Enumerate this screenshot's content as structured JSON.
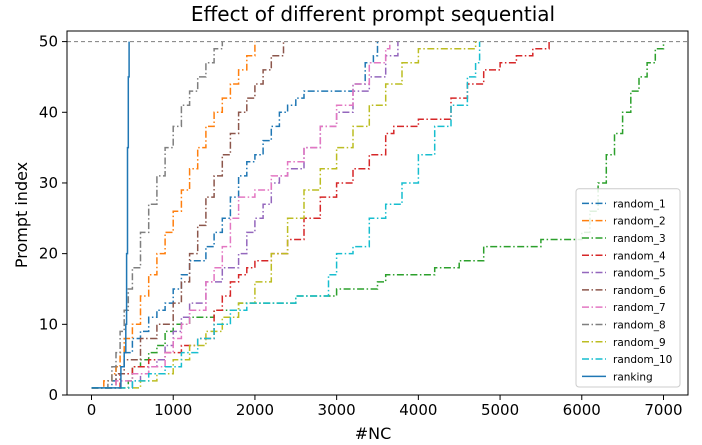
{
  "chart_data": {
    "type": "line",
    "title": "Effect of different prompt sequential",
    "xlabel": "#NC",
    "ylabel": "Prompt index",
    "xlim": [
      -300,
      7300
    ],
    "ylim": [
      0,
      51.5
    ],
    "xticks": [
      0,
      1000,
      2000,
      3000,
      4000,
      5000,
      6000,
      7000
    ],
    "yticks": [
      0,
      10,
      20,
      30,
      40,
      50
    ],
    "reference_line": {
      "y": 50,
      "style": "dashed",
      "color": "#7f7f7f"
    },
    "legend_position": "lower-right",
    "series": [
      {
        "name": "random_1",
        "color": "#1f77b4",
        "style": "dashdot",
        "points": [
          [
            0,
            1
          ],
          [
            200,
            1
          ],
          [
            250,
            2
          ],
          [
            300,
            4
          ],
          [
            400,
            6
          ],
          [
            500,
            8
          ],
          [
            600,
            9
          ],
          [
            700,
            11
          ],
          [
            800,
            12
          ],
          [
            900,
            13
          ],
          [
            1000,
            15
          ],
          [
            1100,
            17
          ],
          [
            1200,
            19
          ],
          [
            1400,
            21
          ],
          [
            1500,
            23
          ],
          [
            1600,
            25
          ],
          [
            1700,
            28
          ],
          [
            1800,
            31
          ],
          [
            1900,
            33
          ],
          [
            2000,
            34
          ],
          [
            2100,
            36
          ],
          [
            2200,
            38
          ],
          [
            2300,
            40
          ],
          [
            2400,
            41
          ],
          [
            2500,
            42
          ],
          [
            2600,
            43
          ],
          [
            2800,
            43
          ],
          [
            3000,
            43
          ],
          [
            3200,
            44
          ],
          [
            3350,
            47
          ],
          [
            3450,
            48
          ],
          [
            3500,
            50
          ]
        ]
      },
      {
        "name": "random_2",
        "color": "#ff7f0e",
        "style": "dashdot",
        "points": [
          [
            0,
            1
          ],
          [
            100,
            1
          ],
          [
            150,
            2
          ],
          [
            250,
            3
          ],
          [
            300,
            4
          ],
          [
            350,
            6
          ],
          [
            400,
            8
          ],
          [
            500,
            10
          ],
          [
            600,
            14
          ],
          [
            700,
            17
          ],
          [
            800,
            20
          ],
          [
            900,
            23
          ],
          [
            1000,
            26
          ],
          [
            1100,
            29
          ],
          [
            1200,
            32
          ],
          [
            1300,
            35
          ],
          [
            1400,
            38
          ],
          [
            1500,
            40
          ],
          [
            1600,
            42
          ],
          [
            1700,
            44
          ],
          [
            1800,
            46
          ],
          [
            1900,
            48
          ],
          [
            2000,
            50
          ]
        ]
      },
      {
        "name": "random_3",
        "color": "#2ca02c",
        "style": "dashdot",
        "points": [
          [
            0,
            1
          ],
          [
            400,
            1
          ],
          [
            450,
            2
          ],
          [
            500,
            4
          ],
          [
            600,
            5
          ],
          [
            700,
            6
          ],
          [
            800,
            7
          ],
          [
            900,
            9
          ],
          [
            1000,
            10
          ],
          [
            1200,
            11
          ],
          [
            1500,
            12
          ],
          [
            1800,
            13
          ],
          [
            2500,
            14
          ],
          [
            3000,
            15
          ],
          [
            3500,
            16
          ],
          [
            3600,
            17
          ],
          [
            4200,
            18
          ],
          [
            4500,
            19
          ],
          [
            4800,
            21
          ],
          [
            5500,
            22
          ],
          [
            6000,
            23
          ],
          [
            6100,
            26
          ],
          [
            6200,
            30
          ],
          [
            6300,
            34
          ],
          [
            6400,
            37
          ],
          [
            6500,
            40
          ],
          [
            6600,
            43
          ],
          [
            6700,
            45
          ],
          [
            6800,
            47
          ],
          [
            6900,
            49
          ],
          [
            7000,
            50
          ]
        ]
      },
      {
        "name": "random_4",
        "color": "#d62728",
        "style": "dashdot",
        "points": [
          [
            0,
            1
          ],
          [
            300,
            1
          ],
          [
            350,
            3
          ],
          [
            500,
            4
          ],
          [
            700,
            5
          ],
          [
            900,
            6
          ],
          [
            1100,
            7
          ],
          [
            1300,
            8
          ],
          [
            1500,
            12
          ],
          [
            1600,
            14
          ],
          [
            1700,
            16
          ],
          [
            1800,
            17
          ],
          [
            1900,
            18
          ],
          [
            2000,
            19
          ],
          [
            2200,
            20
          ],
          [
            2400,
            22
          ],
          [
            2600,
            25
          ],
          [
            2800,
            28
          ],
          [
            3000,
            30
          ],
          [
            3200,
            32
          ],
          [
            3400,
            34
          ],
          [
            3600,
            37
          ],
          [
            3700,
            38
          ],
          [
            3900,
            38
          ],
          [
            4000,
            39
          ],
          [
            4200,
            39
          ],
          [
            4400,
            42
          ],
          [
            4600,
            44
          ],
          [
            4800,
            46
          ],
          [
            5000,
            47
          ],
          [
            5200,
            48
          ],
          [
            5400,
            49
          ],
          [
            5600,
            50
          ]
        ]
      },
      {
        "name": "random_5",
        "color": "#9467bd",
        "style": "dashdot",
        "points": [
          [
            0,
            1
          ],
          [
            400,
            1
          ],
          [
            500,
            2
          ],
          [
            600,
            3
          ],
          [
            700,
            4
          ],
          [
            800,
            5
          ],
          [
            900,
            7
          ],
          [
            1000,
            9
          ],
          [
            1100,
            11
          ],
          [
            1200,
            13
          ],
          [
            1400,
            16
          ],
          [
            1600,
            18
          ],
          [
            1800,
            20
          ],
          [
            1900,
            23
          ],
          [
            2000,
            25
          ],
          [
            2100,
            27
          ],
          [
            2200,
            30
          ],
          [
            2300,
            31
          ],
          [
            2400,
            32
          ],
          [
            2600,
            35
          ],
          [
            2800,
            38
          ],
          [
            3000,
            40
          ],
          [
            3200,
            43
          ],
          [
            3400,
            45
          ],
          [
            3600,
            48
          ],
          [
            3750,
            50
          ]
        ]
      },
      {
        "name": "random_6",
        "color": "#8c564b",
        "style": "dashdot",
        "points": [
          [
            0,
            1
          ],
          [
            200,
            1
          ],
          [
            300,
            3
          ],
          [
            400,
            5
          ],
          [
            600,
            8
          ],
          [
            800,
            10
          ],
          [
            1000,
            13
          ],
          [
            1100,
            16
          ],
          [
            1200,
            20
          ],
          [
            1300,
            24
          ],
          [
            1400,
            28
          ],
          [
            1500,
            31
          ],
          [
            1600,
            34
          ],
          [
            1700,
            37
          ],
          [
            1800,
            40
          ],
          [
            1900,
            42
          ],
          [
            2000,
            44
          ],
          [
            2100,
            46
          ],
          [
            2200,
            48
          ],
          [
            2350,
            50
          ]
        ]
      },
      {
        "name": "random_7",
        "color": "#e377c2",
        "style": "dashdot",
        "points": [
          [
            0,
            1
          ],
          [
            200,
            1
          ],
          [
            300,
            2
          ],
          [
            500,
            3
          ],
          [
            700,
            4
          ],
          [
            900,
            6
          ],
          [
            1000,
            8
          ],
          [
            1100,
            10
          ],
          [
            1200,
            12
          ],
          [
            1400,
            16
          ],
          [
            1500,
            18
          ],
          [
            1600,
            21
          ],
          [
            1700,
            25
          ],
          [
            1800,
            28
          ],
          [
            2000,
            29
          ],
          [
            2200,
            31
          ],
          [
            2400,
            33
          ],
          [
            2600,
            35
          ],
          [
            2800,
            38
          ],
          [
            3000,
            41
          ],
          [
            3200,
            44
          ],
          [
            3400,
            47
          ],
          [
            3600,
            49
          ],
          [
            3650,
            50
          ]
        ]
      },
      {
        "name": "random_8",
        "color": "#7f7f7f",
        "style": "dashdot",
        "points": [
          [
            0,
            1
          ],
          [
            150,
            1
          ],
          [
            200,
            2
          ],
          [
            250,
            4
          ],
          [
            300,
            6
          ],
          [
            350,
            9
          ],
          [
            400,
            12
          ],
          [
            450,
            15
          ],
          [
            500,
            18
          ],
          [
            600,
            23
          ],
          [
            700,
            27
          ],
          [
            800,
            31
          ],
          [
            900,
            35
          ],
          [
            1000,
            38
          ],
          [
            1100,
            41
          ],
          [
            1200,
            43
          ],
          [
            1300,
            45
          ],
          [
            1400,
            47
          ],
          [
            1500,
            49
          ],
          [
            1600,
            50
          ]
        ]
      },
      {
        "name": "random_9",
        "color": "#bcbd22",
        "style": "dashdot",
        "points": [
          [
            0,
            1
          ],
          [
            500,
            1
          ],
          [
            600,
            2
          ],
          [
            800,
            3
          ],
          [
            1000,
            5
          ],
          [
            1200,
            7
          ],
          [
            1400,
            9
          ],
          [
            1600,
            11
          ],
          [
            1800,
            13
          ],
          [
            2000,
            16
          ],
          [
            2200,
            20
          ],
          [
            2400,
            25
          ],
          [
            2600,
            29
          ],
          [
            2800,
            32
          ],
          [
            3000,
            35
          ],
          [
            3200,
            38
          ],
          [
            3400,
            41
          ],
          [
            3600,
            44
          ],
          [
            3800,
            47
          ],
          [
            4000,
            49
          ],
          [
            4600,
            49
          ],
          [
            4700,
            50
          ]
        ]
      },
      {
        "name": "random_10",
        "color": "#17becf",
        "style": "dashdot",
        "points": [
          [
            0,
            1
          ],
          [
            400,
            1
          ],
          [
            500,
            2
          ],
          [
            700,
            3
          ],
          [
            900,
            4
          ],
          [
            1100,
            6
          ],
          [
            1300,
            8
          ],
          [
            1500,
            10
          ],
          [
            1700,
            12
          ],
          [
            1900,
            13
          ],
          [
            2200,
            13
          ],
          [
            2500,
            14
          ],
          [
            2800,
            14
          ],
          [
            2900,
            17
          ],
          [
            3000,
            20
          ],
          [
            3200,
            21
          ],
          [
            3400,
            25
          ],
          [
            3600,
            27
          ],
          [
            3800,
            30
          ],
          [
            4000,
            34
          ],
          [
            4200,
            38
          ],
          [
            4400,
            41
          ],
          [
            4600,
            45
          ],
          [
            4700,
            47
          ],
          [
            4750,
            50
          ]
        ]
      },
      {
        "name": "ranking",
        "color": "#1f77b4",
        "style": "solid",
        "points": [
          [
            0,
            1
          ],
          [
            320,
            1
          ],
          [
            360,
            4
          ],
          [
            400,
            6
          ],
          [
            420,
            10
          ],
          [
            430,
            20
          ],
          [
            440,
            35
          ],
          [
            450,
            45
          ],
          [
            460,
            50
          ]
        ]
      }
    ]
  }
}
